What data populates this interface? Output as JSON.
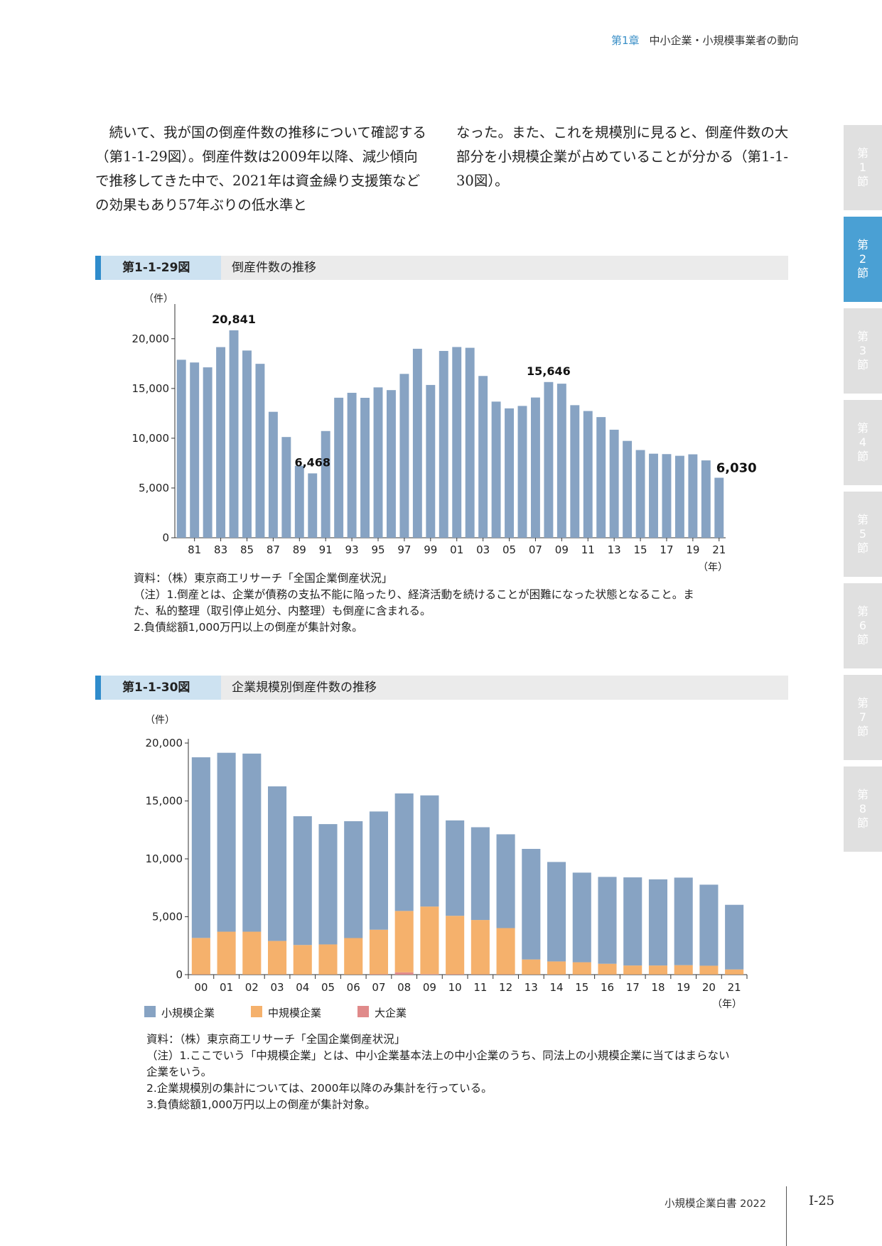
{
  "header": {
    "chapter": "第1章",
    "title": "中小企業・小規模事業者の動向"
  },
  "body_text": {
    "left": "続いて、我が国の倒産件数の推移について確認する（第1-1-29図）。倒産件数は2009年以降、減少傾向で推移してきた中で、2021年は資金繰り支援策などの効果もあり57年ぶりの低水準と",
    "right": "なった。また、これを規模別に見ると、倒産件数の大部分を小規模企業が占めていることが分かる（第1-1-30図）。"
  },
  "side_tabs": [
    {
      "label": "第1節",
      "active": false
    },
    {
      "label": "第2節",
      "active": true
    },
    {
      "label": "第3節",
      "active": false
    },
    {
      "label": "第4節",
      "active": false
    },
    {
      "label": "第5節",
      "active": false
    },
    {
      "label": "第6節",
      "active": false
    },
    {
      "label": "第7節",
      "active": false
    },
    {
      "label": "第8節",
      "active": false
    }
  ],
  "fig29": {
    "number": "第1-1-29図",
    "title": "倒産件数の推移",
    "notes": [
      "資料：（株）東京商工リサーチ「全国企業倒産状況」",
      "（注）1.倒産とは、企業が債務の支払不能に陥ったり、経済活動を続けることが困難になった状態となること。ま",
      "た、私的整理（取引停止処分、内整理）も倒産に含まれる。",
      "2.負債総額1,000万円以上の倒産が集計対象。"
    ]
  },
  "fig30": {
    "number": "第1-1-30図",
    "title": "企業規模別倒産件数の推移",
    "notes": [
      "資料：（株）東京商工リサーチ「全国企業倒産状況」",
      "（注）1.ここでいう「中規模企業」とは、中小企業基本法上の中小企業のうち、同法上の小規模企業に当てはまらない企業をいう。",
      "2.企業規模別の集計については、2000年以降のみ集計を行っている。",
      "3.負債総額1,000万円以上の倒産が集計対象。"
    ]
  },
  "chart_data": [
    {
      "type": "bar",
      "ylabel": "（件）",
      "xlabel": "（年）",
      "ylim": [
        0,
        22000
      ],
      "yticks": [
        0,
        5000,
        10000,
        15000,
        20000
      ],
      "ytick_labels": [
        "0",
        "5,000",
        "10,000",
        "15,000",
        "20,000"
      ],
      "color": "#87a3c3",
      "categories": [
        "80",
        "81",
        "82",
        "83",
        "84",
        "85",
        "86",
        "87",
        "88",
        "89",
        "90",
        "91",
        "92",
        "93",
        "94",
        "95",
        "96",
        "97",
        "98",
        "99",
        "00",
        "01",
        "02",
        "03",
        "04",
        "05",
        "06",
        "07",
        "08",
        "09",
        "10",
        "11",
        "12",
        "13",
        "14",
        "15",
        "16",
        "17",
        "18",
        "19",
        "20",
        "21"
      ],
      "xtick_labels": [
        "81",
        "83",
        "85",
        "87",
        "89",
        "91",
        "93",
        "95",
        "97",
        "99",
        "01",
        "03",
        "05",
        "07",
        "09",
        "11",
        "13",
        "15",
        "17",
        "19",
        "21"
      ],
      "values": [
        17884,
        17610,
        17122,
        19155,
        20841,
        18812,
        17476,
        12655,
        10122,
        7234,
        6468,
        10723,
        14069,
        14564,
        14061,
        15108,
        14834,
        16464,
        18988,
        15352,
        18769,
        19164,
        19087,
        16255,
        13679,
        12998,
        13245,
        14091,
        15646,
        15480,
        13321,
        12734,
        12124,
        10855,
        9731,
        8812,
        8446,
        8405,
        8235,
        8383,
        7773,
        6030
      ],
      "data_labels": [
        {
          "index": 4,
          "text": "20,841"
        },
        {
          "index": 10,
          "text": "6,468"
        },
        {
          "index": 28,
          "text": "15,646"
        },
        {
          "index": 41,
          "text": "6,030"
        }
      ]
    },
    {
      "type": "bar",
      "stacked": true,
      "ylabel": "（件）",
      "xlabel": "（年）",
      "ylim": [
        0,
        20000
      ],
      "yticks": [
        0,
        5000,
        10000,
        15000,
        20000
      ],
      "ytick_labels": [
        "0",
        "5,000",
        "10,000",
        "15,000",
        "20,000"
      ],
      "categories": [
        "00",
        "01",
        "02",
        "03",
        "04",
        "05",
        "06",
        "07",
        "08",
        "09",
        "10",
        "11",
        "12",
        "13",
        "14",
        "15",
        "16",
        "17",
        "18",
        "19",
        "20",
        "21"
      ],
      "series": [
        {
          "name": "大企業",
          "color": "#e08a8a",
          "values": [
            20,
            10,
            10,
            10,
            10,
            10,
            10,
            30,
            200,
            40,
            30,
            20,
            20,
            10,
            10,
            10,
            10,
            10,
            10,
            10,
            10,
            10
          ]
        },
        {
          "name": "中規模企業",
          "color": "#f5b16c",
          "values": [
            3150,
            3700,
            3700,
            2900,
            2550,
            2600,
            3150,
            3850,
            5300,
            5840,
            5050,
            4700,
            4000,
            1300,
            1130,
            1060,
            930,
            780,
            780,
            810,
            760,
            440
          ]
        },
        {
          "name": "小規模企業",
          "color": "#87a3c3",
          "values": [
            15600,
            15450,
            15380,
            13350,
            11120,
            10390,
            10090,
            10210,
            10150,
            9600,
            8240,
            8010,
            8100,
            9550,
            8590,
            7740,
            7500,
            7610,
            7440,
            7560,
            7000,
            5580
          ]
        }
      ],
      "legend": [
        "小規模企業",
        "中規模企業",
        "大企業"
      ],
      "legend_position": "bottom-left"
    }
  ],
  "footer": {
    "book": "小規模企業白書  2022",
    "page": "I-25"
  }
}
